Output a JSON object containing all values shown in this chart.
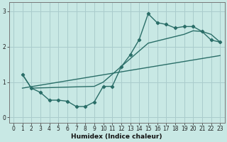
{
  "xlabel": "Humidex (Indice chaleur)",
  "xlim": [
    -0.5,
    23.5
  ],
  "ylim": [
    -0.15,
    3.25
  ],
  "xticks": [
    0,
    1,
    2,
    3,
    4,
    5,
    6,
    7,
    8,
    9,
    10,
    11,
    12,
    13,
    14,
    15,
    16,
    17,
    18,
    19,
    20,
    21,
    22,
    23
  ],
  "yticks": [
    0,
    1,
    2,
    3
  ],
  "bg_color": "#c8e8e4",
  "line_color": "#2a6e68",
  "grid_color": "#aacccc",
  "line1_x": [
    1,
    2,
    3,
    4,
    5,
    6,
    7,
    8,
    9,
    10,
    11,
    12,
    13,
    14,
    15,
    16,
    17,
    18,
    19,
    20,
    21,
    22,
    23
  ],
  "line1_y": [
    1.22,
    0.83,
    0.71,
    0.49,
    0.49,
    0.46,
    0.31,
    0.31,
    0.44,
    0.88,
    0.88,
    1.43,
    1.77,
    2.2,
    2.93,
    2.68,
    2.63,
    2.53,
    2.57,
    2.57,
    2.43,
    2.19,
    2.13
  ],
  "line2_x": [
    1,
    2,
    9,
    10,
    14,
    15,
    19,
    20,
    21,
    22,
    23
  ],
  "line2_y": [
    1.22,
    0.83,
    0.88,
    1.0,
    1.88,
    2.1,
    2.35,
    2.45,
    2.43,
    2.35,
    2.13
  ],
  "line3_x": [
    1,
    23
  ],
  "line3_y": [
    0.83,
    1.75
  ]
}
